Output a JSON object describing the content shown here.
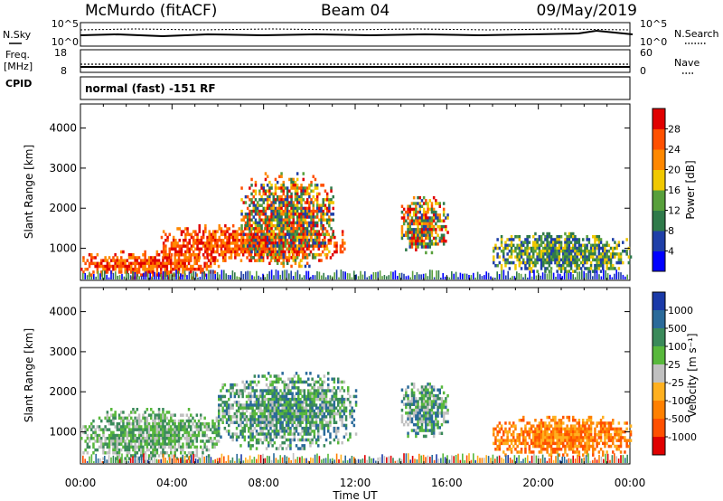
{
  "header": {
    "station": "McMurdo (fitACF)",
    "beam": "Beam 04",
    "date": "09/May/2019"
  },
  "noise_panel": {
    "left_label": "N.Sky",
    "right_label": "N.Search",
    "left_ticks": [
      "10^5",
      "10^0"
    ],
    "right_ticks": [
      "10^5",
      "10^0"
    ]
  },
  "freq_panel": {
    "left_label_1": "Freq.",
    "left_label_2": "[MHz]",
    "right_label": "Nave",
    "left_ticks": [
      "18",
      "8"
    ],
    "right_ticks": [
      "60",
      "0"
    ]
  },
  "cpid": {
    "label": "CPID",
    "text": "normal (fast) -151 RF"
  },
  "colors": {
    "power_scale": [
      "#0000ff",
      "#1f3fa8",
      "#2f7a4a",
      "#58a03c",
      "#f0c800",
      "#ff8800",
      "#ff5000",
      "#e00000"
    ],
    "velocity_scale": [
      "#1a3aa8",
      "#2a6a9a",
      "#3a8a5a",
      "#58b83c",
      "#c0c0c0",
      "#ffb020",
      "#ff8000",
      "#ff5000",
      "#e00000"
    ]
  },
  "chart_data": [
    {
      "type": "heatmap",
      "title": "Power",
      "xlabel": "",
      "ylabel": "Slant Range [km]",
      "x_ticks": [
        "00:00",
        "04:00",
        "08:00",
        "12:00",
        "16:00",
        "20:00",
        "00:00"
      ],
      "y_ticks": [
        "1000",
        "2000",
        "3000",
        "4000"
      ],
      "ylim": [
        200,
        4600
      ],
      "colorbar": {
        "label": "Power [dB]",
        "ticks": [
          "4",
          "8",
          "12",
          "16",
          "20",
          "24",
          "28"
        ]
      },
      "regions": [
        {
          "t0": 0.0,
          "t1": 6.0,
          "r0": 300,
          "r1": 950,
          "level": "high"
        },
        {
          "t0": 3.5,
          "t1": 11.5,
          "r0": 700,
          "r1": 1600,
          "level": "high"
        },
        {
          "t0": 7.0,
          "t1": 11.0,
          "r0": 550,
          "r1": 2900,
          "level": "mixed"
        },
        {
          "t0": 14.0,
          "t1": 16.0,
          "r0": 900,
          "r1": 2300,
          "level": "mixed"
        },
        {
          "t0": 18.0,
          "t1": 24.0,
          "r0": 400,
          "r1": 1400,
          "level": "low"
        }
      ]
    },
    {
      "type": "heatmap",
      "title": "Velocity",
      "xlabel": "Time UT",
      "ylabel": "Slant Range [km]",
      "x_ticks": [
        "00:00",
        "04:00",
        "08:00",
        "12:00",
        "16:00",
        "20:00",
        "00:00"
      ],
      "y_ticks": [
        "1000",
        "2000",
        "3000",
        "4000"
      ],
      "ylim": [
        200,
        4600
      ],
      "colorbar": {
        "label": "Velocity [m s⁻¹]",
        "ticks": [
          "1000",
          "500",
          "100",
          "25",
          "-25",
          "-100",
          "-500",
          "-1000"
        ]
      },
      "regions": [
        {
          "t0": 0.0,
          "t1": 6.0,
          "r0": 300,
          "r1": 1600,
          "level": "green"
        },
        {
          "t0": 6.0,
          "t1": 12.0,
          "r0": 600,
          "r1": 2500,
          "level": "teal"
        },
        {
          "t0": 14.0,
          "t1": 16.0,
          "r0": 900,
          "r1": 2300,
          "level": "teal"
        },
        {
          "t0": 18.0,
          "t1": 24.0,
          "r0": 400,
          "r1": 1400,
          "level": "orange"
        }
      ]
    }
  ]
}
